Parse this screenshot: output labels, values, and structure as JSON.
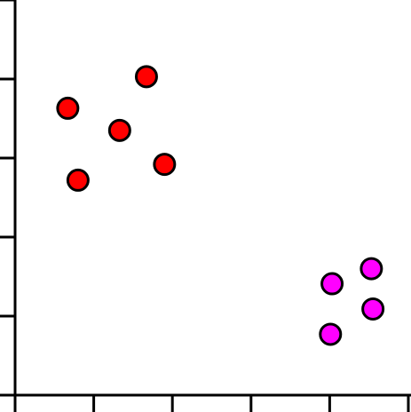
{
  "chart_data": {
    "type": "scatter",
    "title": "",
    "xlabel": "",
    "ylabel": "",
    "xlim": [
      0,
      5
    ],
    "ylim": [
      0,
      5
    ],
    "grid": false,
    "legend": "none",
    "x_ticks": [
      0,
      1,
      2,
      3,
      4,
      5
    ],
    "y_ticks": [
      0,
      1,
      2,
      3,
      4,
      5
    ],
    "series": [
      {
        "color": "#ff0000",
        "points": [
          {
            "x": 1.67,
            "y": 4.03
          },
          {
            "x": 0.67,
            "y": 3.63
          },
          {
            "x": 1.33,
            "y": 3.35
          },
          {
            "x": 1.9,
            "y": 2.92
          },
          {
            "x": 0.8,
            "y": 2.72
          }
        ]
      },
      {
        "color": "#ff00ff",
        "points": [
          {
            "x": 4.53,
            "y": 1.6
          },
          {
            "x": 4.03,
            "y": 1.41
          },
          {
            "x": 4.55,
            "y": 1.09
          },
          {
            "x": 4.01,
            "y": 0.77
          }
        ]
      }
    ]
  }
}
